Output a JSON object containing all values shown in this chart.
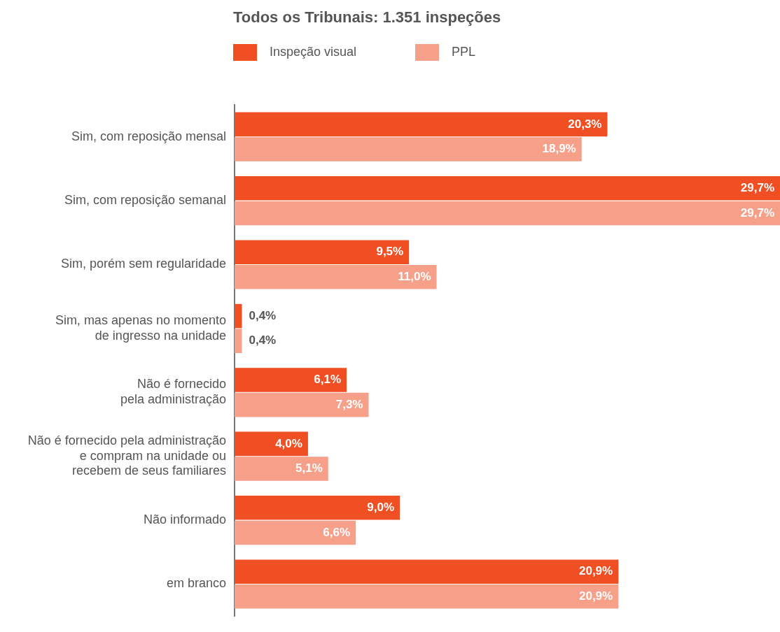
{
  "chart_data": {
    "type": "bar",
    "orientation": "horizontal",
    "title": "Todos os Tribunais: 1.351 inspeções",
    "legend": "top left",
    "grid": false,
    "categories": [
      "Sim, com reposição mensal",
      "Sim, com reposição semanal",
      "Sim, porém sem regularidade",
      "Sim, mas apenas no momento\nde ingresso na unidade",
      "Não é fornecido\npela administração",
      "Não é fornecido pela administração\ne compram na unidade ou\nrecebem de seus familiares",
      "Não informado",
      "em branco"
    ],
    "series": [
      {
        "name": "Inspeção visual",
        "color": "#f04e23",
        "values": [
          20.3,
          29.7,
          9.5,
          0.4,
          6.1,
          4.0,
          9.0,
          20.9
        ],
        "value_labels": [
          "20,3%",
          "29,7%",
          "9,5%",
          "0,4%",
          "6,1%",
          "4,0%",
          "9,0%",
          "20,9%"
        ]
      },
      {
        "name": "PPL",
        "color": "#f6a08a",
        "values": [
          18.9,
          29.7,
          11.0,
          0.4,
          7.3,
          5.1,
          6.6,
          20.9
        ],
        "value_labels": [
          "18,9%",
          "29,7%",
          "11,0%",
          "0,4%",
          "7,3%",
          "5,1%",
          "6,6%",
          "20,9%"
        ]
      }
    ]
  }
}
